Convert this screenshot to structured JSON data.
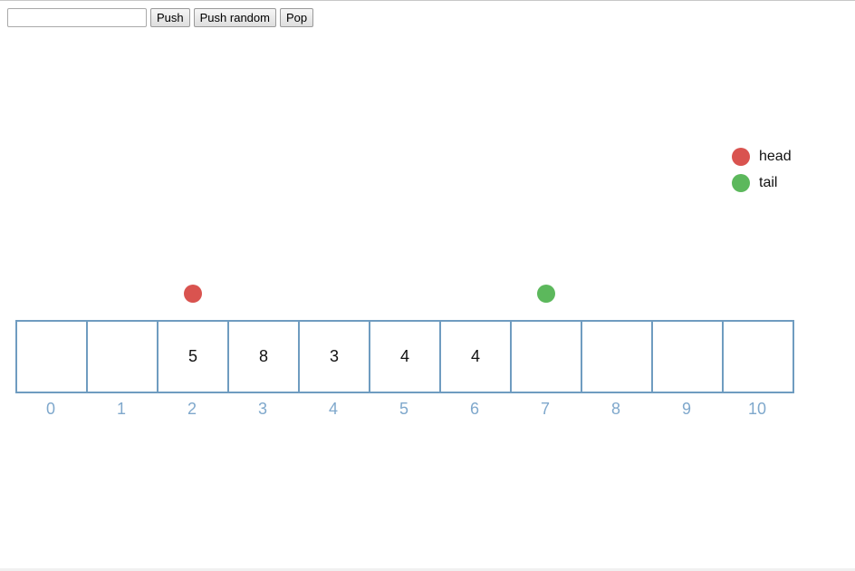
{
  "toolbar": {
    "input_value": "",
    "input_placeholder": "",
    "push_label": "Push",
    "push_random_label": "Push random",
    "pop_label": "Pop"
  },
  "legend": {
    "head_label": "head",
    "tail_label": "tail",
    "head_color": "#d9534f",
    "tail_color": "#5cb85c"
  },
  "queue": {
    "capacity": 11,
    "head_index": 2,
    "tail_index": 7,
    "cells": [
      "",
      "",
      "5",
      "8",
      "3",
      "4",
      "4",
      "",
      "",
      "",
      ""
    ],
    "indices": [
      "0",
      "1",
      "2",
      "3",
      "4",
      "5",
      "6",
      "7",
      "8",
      "9",
      "10"
    ]
  }
}
